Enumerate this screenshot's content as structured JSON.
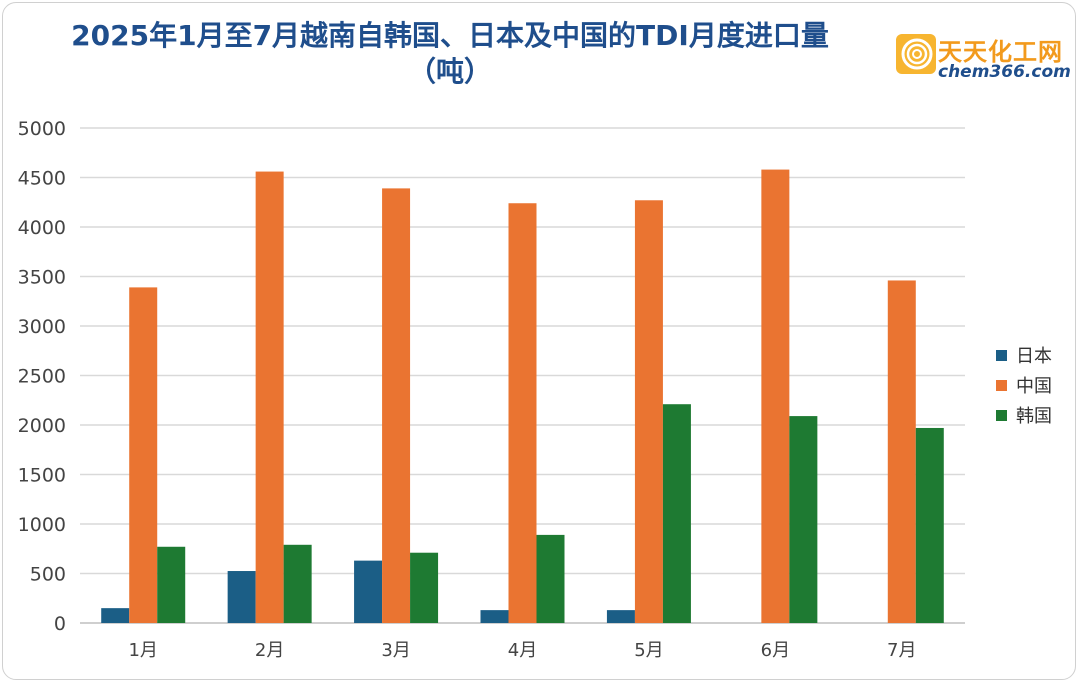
{
  "title": "2025年1月至7月越南自韩国、日本及中国的TDI月度进口量",
  "subtitle": "（吨）",
  "logo": {
    "name": "天天化工网",
    "url": "chem366.com",
    "icon": "ring-logo-icon"
  },
  "colors": {
    "日本": "#1b5e86",
    "中国": "#ea7431",
    "韩国": "#1e7a32",
    "title": "#1f4e8c",
    "grid": "#d9d9d9"
  },
  "chart_data": {
    "type": "bar",
    "title": "2025年1月至7月越南自韩国、日本及中国的TDI月度进口量（吨）",
    "xlabel": "",
    "ylabel": "",
    "categories": [
      "1月",
      "2月",
      "3月",
      "4月",
      "5月",
      "6月",
      "7月"
    ],
    "series": [
      {
        "name": "日本",
        "values": [
          150,
          525,
          630,
          130,
          130,
          0,
          0
        ]
      },
      {
        "name": "中国",
        "values": [
          3390,
          4560,
          4390,
          4240,
          4270,
          4580,
          3460
        ]
      },
      {
        "name": "韩国",
        "values": [
          770,
          790,
          710,
          890,
          2210,
          2090,
          1970
        ]
      }
    ],
    "ylim": [
      0,
      5000
    ],
    "yticks": [
      0,
      500,
      1000,
      1500,
      2000,
      2500,
      3000,
      3500,
      4000,
      4500,
      5000
    ],
    "grid": true,
    "legend": "right"
  }
}
